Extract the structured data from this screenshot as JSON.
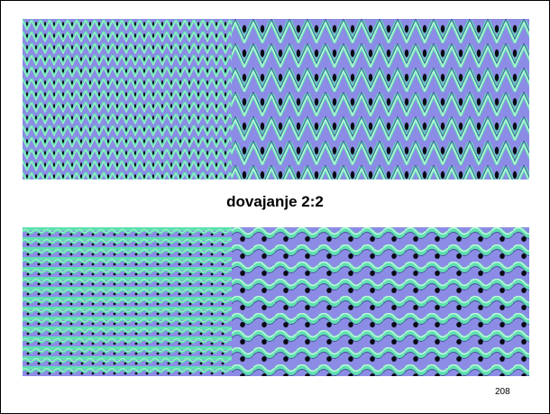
{
  "slide": {
    "caption": "dovajanje 2:2",
    "page_number": "208"
  },
  "figures": [
    {
      "name": "fine-knit-texture-top",
      "pattern": "vertical-chevron"
    },
    {
      "name": "coarse-knit-texture-top",
      "pattern": "vertical-chevron"
    },
    {
      "name": "fine-knit-texture-bottom",
      "pattern": "horizontal-wave"
    },
    {
      "name": "coarse-knit-texture-bottom",
      "pattern": "horizontal-wave"
    }
  ],
  "colors": {
    "green": "#5fe0b0",
    "blue": "#8c8ce6",
    "dark": "#0a0a14",
    "frame": "#000000"
  }
}
